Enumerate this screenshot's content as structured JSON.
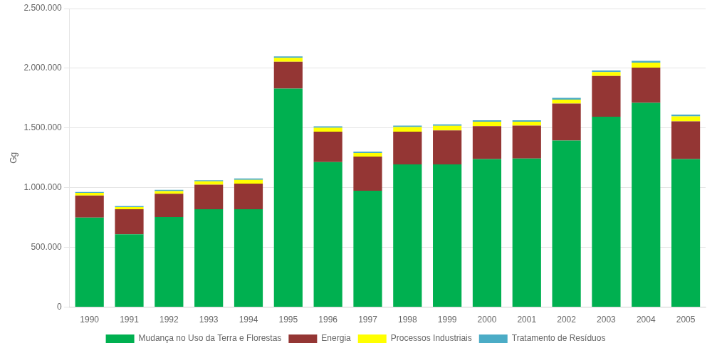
{
  "chart_data": {
    "type": "bar",
    "stacked": true,
    "categories": [
      "1990",
      "1991",
      "1992",
      "1993",
      "1994",
      "1995",
      "1996",
      "1997",
      "1998",
      "1999",
      "2000",
      "2001",
      "2002",
      "2003",
      "2004",
      "2005"
    ],
    "series": [
      {
        "name": "Mudança no Uso da Terra e Florestas",
        "color": "#00b050",
        "values": [
          750000,
          610000,
          755000,
          820000,
          820000,
          1830000,
          1215000,
          975000,
          1195000,
          1195000,
          1240000,
          1245000,
          1395000,
          1595000,
          1710000,
          1240000
        ]
      },
      {
        "name": "Energia",
        "color": "#943634",
        "values": [
          185000,
          210000,
          195000,
          205000,
          215000,
          225000,
          255000,
          285000,
          275000,
          285000,
          275000,
          275000,
          310000,
          340000,
          295000,
          315000
        ]
      },
      {
        "name": "Processos Industriais",
        "color": "#ffff00",
        "values": [
          22000,
          18000,
          22000,
          28000,
          30000,
          32000,
          32000,
          30000,
          38000,
          38000,
          38000,
          32000,
          33000,
          33000,
          42000,
          42000
        ]
      },
      {
        "name": "Tratamento de Resíduos",
        "color": "#4bacc6",
        "values": [
          8000,
          8000,
          10000,
          10000,
          12000,
          12000,
          12000,
          12000,
          12000,
          12000,
          12000,
          12000,
          14000,
          14000,
          15000,
          15000
        ]
      }
    ],
    "ylabel": "Gg",
    "ylim": [
      0,
      2500000
    ],
    "yticks": [
      0,
      {
        "value": 500000,
        "label": "500.000"
      },
      {
        "value": 1000000,
        "label": "1.000.000"
      },
      {
        "value": 1500000,
        "label": "1.500.000"
      },
      {
        "value": 2000000,
        "label": "2.000.000"
      },
      {
        "value": 2500000,
        "label": "2.500.000"
      }
    ],
    "grid": true,
    "legend": "bottom"
  }
}
